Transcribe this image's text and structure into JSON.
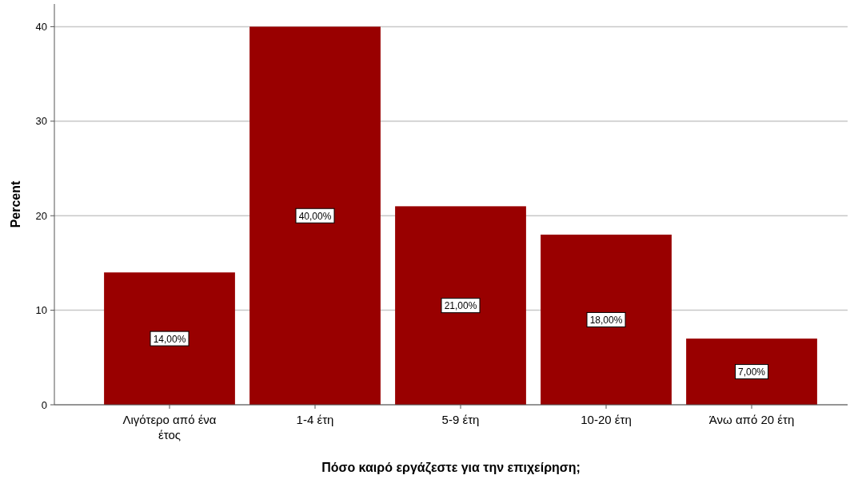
{
  "chart_data": {
    "type": "bar",
    "xlabel": "Πόσο καιρό εργάζεστε για την επιχείρηση;",
    "ylabel": "Percent",
    "categories": [
      "Λιγότερο από ένα έτος",
      "1-4 έτη",
      "5-9 έτη",
      "10-20 έτη",
      "Άνω από 20 έτη"
    ],
    "values": [
      14,
      40,
      21,
      18,
      7
    ],
    "value_labels": [
      "14,00%",
      "40,00%",
      "21,00%",
      "18,00%",
      "7,00%"
    ],
    "color": "#990000",
    "ylim": [
      0,
      42.4
    ],
    "yticks": [
      0,
      10,
      20,
      30,
      40
    ],
    "grid": "y"
  }
}
